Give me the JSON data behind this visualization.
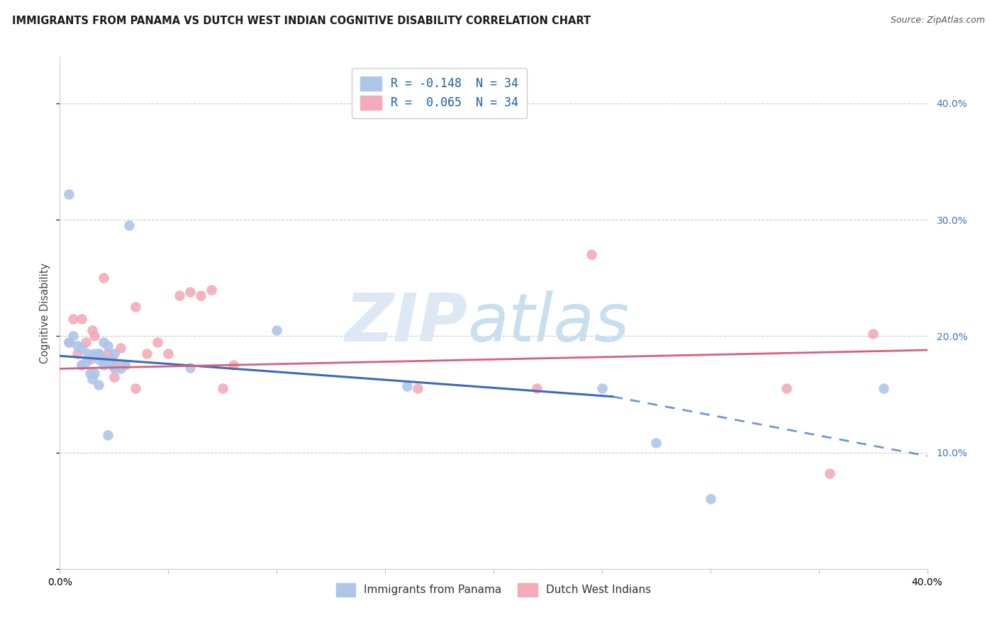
{
  "title": "IMMIGRANTS FROM PANAMA VS DUTCH WEST INDIAN COGNITIVE DISABILITY CORRELATION CHART",
  "source": "Source: ZipAtlas.com",
  "ylabel": "Cognitive Disability",
  "xlim": [
    0.0,
    0.4
  ],
  "ylim": [
    0.0,
    0.44
  ],
  "legend_entry1_r": "R = -0.148",
  "legend_entry1_n": "  N = 34",
  "legend_entry2_r": "R =  0.065",
  "legend_entry2_n": "  N = 34",
  "blue_color": "#adc6e8",
  "pink_color": "#f4aab8",
  "blue_line_color": "#3a6abf",
  "pink_line_color": "#d95f7a",
  "blue_scatter_x": [
    0.004,
    0.004,
    0.006,
    0.008,
    0.01,
    0.01,
    0.012,
    0.013,
    0.014,
    0.015,
    0.016,
    0.018,
    0.018,
    0.02,
    0.02,
    0.022,
    0.022,
    0.024,
    0.025,
    0.025,
    0.028,
    0.03,
    0.032,
    0.016,
    0.018,
    0.02,
    0.022,
    0.06,
    0.1,
    0.16,
    0.25,
    0.275,
    0.3,
    0.38
  ],
  "blue_scatter_y": [
    0.195,
    0.322,
    0.2,
    0.192,
    0.19,
    0.175,
    0.178,
    0.185,
    0.168,
    0.163,
    0.185,
    0.185,
    0.18,
    0.195,
    0.175,
    0.192,
    0.178,
    0.175,
    0.185,
    0.173,
    0.172,
    0.175,
    0.295,
    0.168,
    0.158,
    0.18,
    0.115,
    0.173,
    0.205,
    0.157,
    0.155,
    0.108,
    0.06,
    0.155
  ],
  "pink_scatter_x": [
    0.004,
    0.006,
    0.008,
    0.01,
    0.012,
    0.014,
    0.016,
    0.018,
    0.02,
    0.022,
    0.024,
    0.026,
    0.028,
    0.03,
    0.035,
    0.04,
    0.05,
    0.06,
    0.07,
    0.08,
    0.01,
    0.015,
    0.025,
    0.035,
    0.045,
    0.055,
    0.065,
    0.075,
    0.165,
    0.22,
    0.245,
    0.335,
    0.355,
    0.375
  ],
  "pink_scatter_y": [
    0.195,
    0.215,
    0.185,
    0.175,
    0.195,
    0.18,
    0.2,
    0.185,
    0.25,
    0.185,
    0.18,
    0.175,
    0.19,
    0.175,
    0.225,
    0.185,
    0.185,
    0.238,
    0.24,
    0.175,
    0.215,
    0.205,
    0.165,
    0.155,
    0.195,
    0.235,
    0.235,
    0.155,
    0.155,
    0.155,
    0.27,
    0.155,
    0.082,
    0.202
  ],
  "watermark_zip": "ZIP",
  "watermark_atlas": "atlas",
  "bottom_legend_label1": "Immigrants from Panama",
  "bottom_legend_label2": "Dutch West Indians",
  "blue_line_x_solid_end": 0.255,
  "blue_line_x0": 0.0,
  "blue_line_y0": 0.183,
  "blue_line_y_end_solid": 0.148,
  "blue_line_y_end_dashed": 0.097,
  "pink_line_y0": 0.172,
  "pink_line_y_end": 0.188
}
